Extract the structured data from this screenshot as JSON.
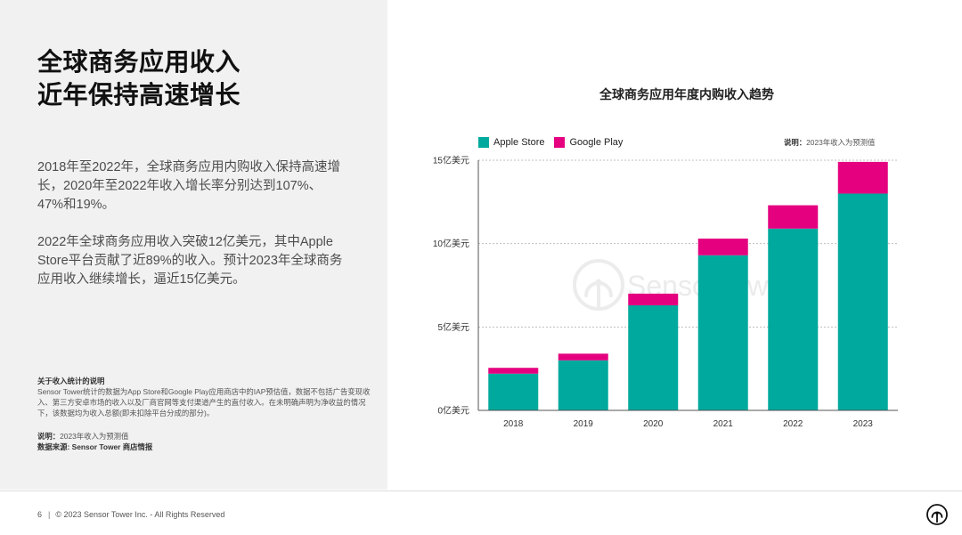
{
  "left_panel": {
    "title_line1": "全球商务应用收入",
    "title_line2": "近年保持高速增长",
    "paragraph1": "2018年至2022年，全球商务应用内购收入保持高速增长，2020年至2022年收入增长率分别达到107%、47%和19%。",
    "paragraph2": "2022年全球商务应用收入突破12亿美元，其中Apple Store平台贡献了近89%的收入。预计2023年全球商务应用收入继续增长，逼近15亿美元。",
    "note_title": "关于收入统计的说明",
    "note_body": "Sensor Tower统计的数据为App Store和Google Play应用商店中的IAP预估值，数据不包括广告变现收入、第三方安卓市场的收入以及厂商官网等支付渠道产生的直付收入。在未明确声明为净收益的情况下，该数据均为收入总额(即未扣除平台分成的部分)。",
    "remark_label": "说明：",
    "remark_text": "2023年收入为预测值",
    "source": "数据来源: Sensor Tower 商店情报"
  },
  "footer": {
    "page_number": "6",
    "separator": "|",
    "copyright": "© 2023 Sensor Tower Inc. - All Rights Reserved",
    "logo_icon": "sensor-tower-logo-icon"
  },
  "chart_data": {
    "type": "bar",
    "stacked": true,
    "title": "全球商务应用年度内购收入趋势",
    "note_label": "说明：",
    "note_text": "2023年收入为预测值",
    "categories": [
      "2018",
      "2019",
      "2020",
      "2021",
      "2022",
      "2023"
    ],
    "series": [
      {
        "name": "Apple Store",
        "color": "#00A99D",
        "values": [
          2.2,
          3.0,
          6.3,
          9.3,
          10.9,
          13.0
        ]
      },
      {
        "name": "Google Play",
        "color": "#E4007F",
        "values": [
          0.35,
          0.4,
          0.7,
          1.0,
          1.4,
          1.9
        ]
      }
    ],
    "unit": "亿美元",
    "y_ticks": [
      0,
      5,
      10,
      15
    ],
    "y_tick_labels": [
      "0亿美元",
      "5亿美元",
      "10亿美元",
      "15亿美元"
    ],
    "ylim": [
      0,
      15
    ],
    "xlabel": "",
    "ylabel": "",
    "grid": true,
    "legend_position": "top-left",
    "watermark": "SensorTower"
  }
}
